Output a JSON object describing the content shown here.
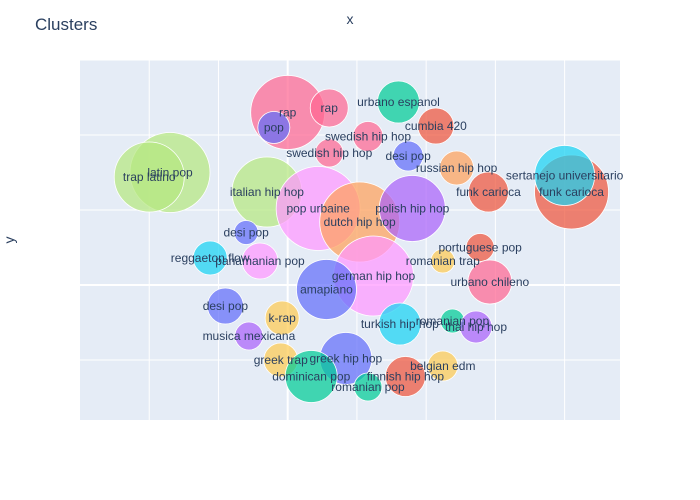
{
  "chart_data": {
    "type": "scatter",
    "title": "Clusters",
    "xlabel": "x",
    "ylabel": "y",
    "xlim": [
      -15,
      24
    ],
    "ylim": [
      -9,
      15
    ],
    "show_tick_labels": false,
    "grid": true,
    "legend": "none",
    "points": [
      {
        "label": "rap",
        "x": 0,
        "y": 11.5,
        "r": 37,
        "color": "#FF6692"
      },
      {
        "label": "rap",
        "x": 3,
        "y": 11.8,
        "r": 19,
        "color": "#FF6692"
      },
      {
        "label": "pop",
        "x": -1,
        "y": 10.5,
        "r": 16,
        "color": "#636EFA"
      },
      {
        "label": "urbano espanol",
        "x": 8,
        "y": 12.2,
        "r": 21,
        "color": "#00CC96"
      },
      {
        "label": "cumbia 420",
        "x": 10.7,
        "y": 10.6,
        "r": 18,
        "color": "#EF553B"
      },
      {
        "label": "swedish hip hop",
        "x": 5.8,
        "y": 9.9,
        "r": 15,
        "color": "#FF6692"
      },
      {
        "label": "swedish hip hop",
        "x": 3,
        "y": 8.8,
        "r": 14,
        "color": "#FF6692"
      },
      {
        "label": "desi pop",
        "x": 8.7,
        "y": 8.6,
        "r": 15,
        "color": "#636EFA"
      },
      {
        "label": "russian hip hop",
        "x": 12.2,
        "y": 7.8,
        "r": 17,
        "color": "#FFA15A"
      },
      {
        "label": "latin pop",
        "x": -8.5,
        "y": 7.5,
        "r": 40,
        "color": "#B6E880"
      },
      {
        "label": "trap latino",
        "x": -10,
        "y": 7.2,
        "r": 35,
        "color": "#B6E880"
      },
      {
        "label": "italian hip hop",
        "x": -1.5,
        "y": 6.2,
        "r": 35,
        "color": "#B6E880"
      },
      {
        "label": "pop urbaine",
        "x": 2.2,
        "y": 5.1,
        "r": 42,
        "color": "#FF97FF"
      },
      {
        "label": "dutch hip hop",
        "x": 5.2,
        "y": 4.2,
        "r": 40,
        "color": "#FFA15A"
      },
      {
        "label": "polish hip hop",
        "x": 9,
        "y": 5.1,
        "r": 33,
        "color": "#AB63FA"
      },
      {
        "label": "funk carioca",
        "x": 14.5,
        "y": 6.2,
        "r": 20,
        "color": "#EF553B"
      },
      {
        "label": "funk carioca",
        "x": 20.5,
        "y": 6.2,
        "r": 37,
        "color": "#EF553B"
      },
      {
        "label": "sertanejo universitario",
        "x": 20,
        "y": 7.3,
        "r": 30,
        "color": "#19D3F3"
      },
      {
        "label": "desi pop",
        "x": -3,
        "y": 3.5,
        "r": 12,
        "color": "#636EFA"
      },
      {
        "label": "portuguese pop",
        "x": 13.9,
        "y": 2.5,
        "r": 14,
        "color": "#EF553B"
      },
      {
        "label": "reggaeton flow",
        "x": -5.6,
        "y": 1.8,
        "r": 17,
        "color": "#19D3F3"
      },
      {
        "label": "panamanian pop",
        "x": -2,
        "y": 1.6,
        "r": 18,
        "color": "#FF97FF"
      },
      {
        "label": "romanian trap",
        "x": 11.2,
        "y": 1.6,
        "r": 12,
        "color": "#FECB52"
      },
      {
        "label": "german hip hop",
        "x": 6.2,
        "y": 0.6,
        "r": 40,
        "color": "#FF97FF"
      },
      {
        "label": "urbano chileno",
        "x": 14.6,
        "y": 0.2,
        "r": 22,
        "color": "#FF6692"
      },
      {
        "label": "amapiano",
        "x": 2.8,
        "y": -0.3,
        "r": 30,
        "color": "#636EFA"
      },
      {
        "label": "desi pop",
        "x": -4.5,
        "y": -1.4,
        "r": 18,
        "color": "#636EFA"
      },
      {
        "label": "k-rap",
        "x": -0.4,
        "y": -2.2,
        "r": 17,
        "color": "#FECB52"
      },
      {
        "label": "turkish hip hop",
        "x": 8.1,
        "y": -2.6,
        "r": 21,
        "color": "#19D3F3"
      },
      {
        "label": "romanian pop",
        "x": 11.9,
        "y": -2.4,
        "r": 12,
        "color": "#00CC96"
      },
      {
        "label": "thai hip hop",
        "x": 13.6,
        "y": -2.8,
        "r": 16,
        "color": "#AB63FA"
      },
      {
        "label": "musica mexicana",
        "x": -2.8,
        "y": -3.4,
        "r": 14,
        "color": "#AB63FA"
      },
      {
        "label": "greek trap",
        "x": -0.5,
        "y": -5,
        "r": 17,
        "color": "#FECB52"
      },
      {
        "label": "greek hip hop",
        "x": 4.2,
        "y": -4.9,
        "r": 26,
        "color": "#636EFA"
      },
      {
        "label": "belgian edm",
        "x": 11.2,
        "y": -5.4,
        "r": 15,
        "color": "#FECB52"
      },
      {
        "label": "dominican pop",
        "x": 1.7,
        "y": -6.1,
        "r": 26,
        "color": "#00CC96"
      },
      {
        "label": "finnish hip hop",
        "x": 8.5,
        "y": -6.1,
        "r": 20,
        "color": "#EF553B"
      },
      {
        "label": "romanian pop",
        "x": 5.8,
        "y": -6.8,
        "r": 14,
        "color": "#00CC96"
      }
    ]
  }
}
